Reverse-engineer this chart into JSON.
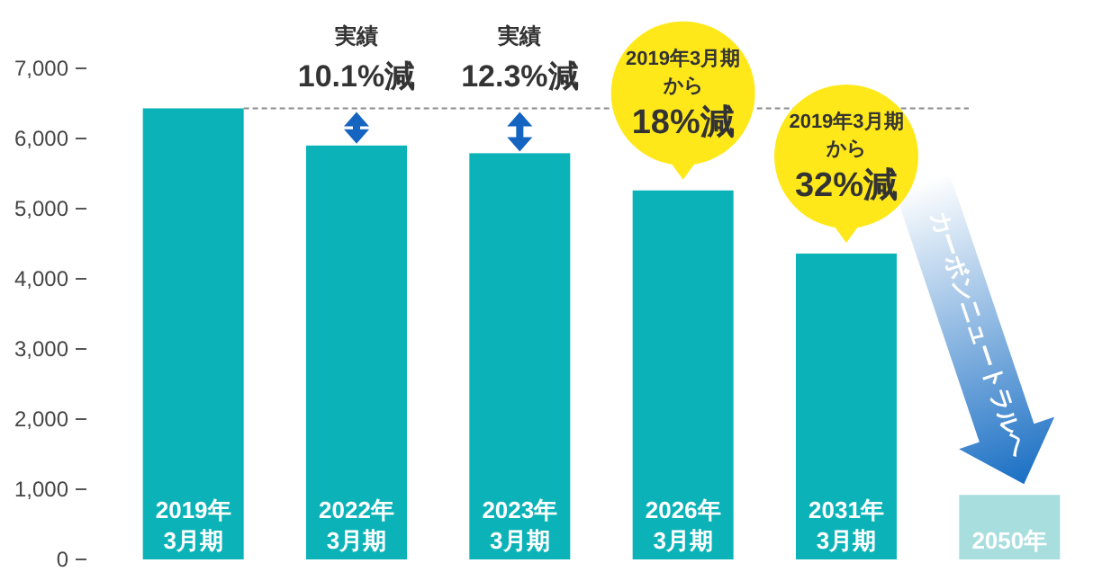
{
  "chart_data": {
    "type": "bar",
    "categories": [
      "2019年\n3月期",
      "2022年\n3月期",
      "2023年\n3月期",
      "2026年\n3月期",
      "2031年\n3月期",
      "2050年"
    ],
    "values": [
      6430,
      5900,
      5790,
      5260,
      4360,
      920
    ],
    "colors": [
      "#0bb3b8",
      "#0bb3b8",
      "#0bb3b8",
      "#0bb3b8",
      "#0bb3b8",
      "#a9dede"
    ],
    "ylim": [
      0,
      7000
    ],
    "yticks": [
      0,
      {
        "value": 1000,
        "label": "1,000"
      },
      {
        "value": 2000,
        "label": "2,000"
      },
      {
        "value": 3000,
        "label": "3,000"
      },
      {
        "value": 4000,
        "label": "4,000"
      },
      {
        "value": 5000,
        "label": "5,000"
      },
      {
        "value": 6000,
        "label": "6,000"
      },
      {
        "value": 7000,
        "label": "7,000"
      }
    ],
    "ref_lines": [
      {
        "axis": "y",
        "value": 6430,
        "color": "#8c8c8c",
        "line_style": "dashed"
      }
    ],
    "annotations": [
      {
        "text": "実績\n10.1%減",
        "x": "2022年\n3月期",
        "y": 5900
      },
      {
        "text": "実績\n12.3%減",
        "x": "2023年\n3月期",
        "y": 5790
      },
      "2019年3月期",
      "から",
      {
        "text": "18%減",
        "x": "2026年\n3月期",
        "y": 5260
      },
      "2019年3月期",
      "から",
      {
        "text": "32%減",
        "x": "2031年\n3月期",
        "y": 4360
      },
      "カーボンニュートラルへ"
    ],
    "grid": false
  }
}
